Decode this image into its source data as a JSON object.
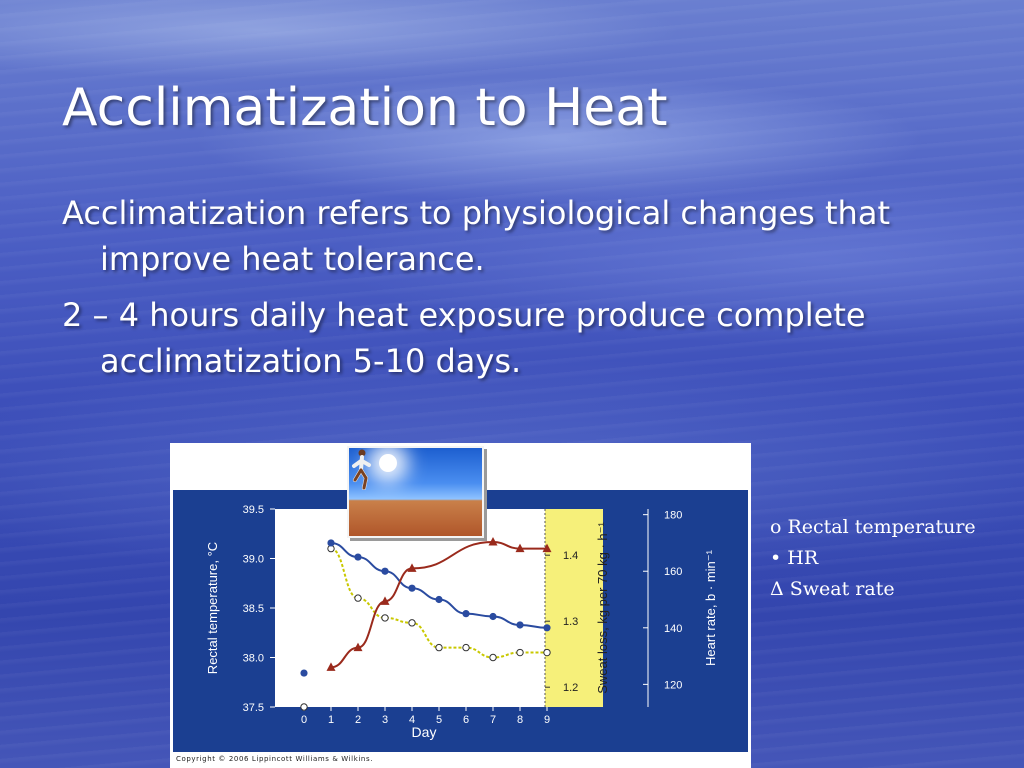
{
  "slide": {
    "title": "Acclimatization to Heat",
    "bullets": [
      "Acclimatization refers to physiological changes that improve heat tolerance.",
      "2 – 4 hours daily heat exposure produce complete acclimatization 5-10 days."
    ]
  },
  "legend": {
    "items": [
      "o Rectal temperature",
      "• HR",
      "Δ Sweat rate"
    ]
  },
  "figure": {
    "copyright": "Copyright © 2006 Lippincott Williams & Wilkins."
  },
  "colors": {
    "panel_blue": "#1b3f91",
    "plot_bg": "#ffffff",
    "sweat_band": "#f6f07a",
    "hr_series": "#2a4ba0",
    "sweat_series": "#9a2a1c",
    "rectal_series": "#c9c800"
  },
  "chart_data": {
    "type": "scatter",
    "xlabel": "Day",
    "x_ticks": [
      "0",
      "1",
      "2",
      "3",
      "4",
      "5",
      "6",
      "7",
      "8",
      "9"
    ],
    "xlim": [
      0,
      9
    ],
    "left_axis": {
      "label": "Rectal temperature, °C",
      "ylim": [
        37.5,
        39.5
      ],
      "ticks": [
        "39.5",
        "39.0",
        "38.5",
        "38.0",
        "37.5"
      ]
    },
    "inner_axis": {
      "label": "Sweat loss, kg per 70 kg · h⁻¹",
      "ticks": [
        "1.4",
        "1.3",
        "1.2"
      ],
      "ylim": [
        1.17,
        1.47
      ]
    },
    "right_axis": {
      "label": "Heart rate, b · min⁻¹",
      "ticks": [
        "180",
        "160",
        "140",
        "120"
      ],
      "ylim": [
        112,
        182
      ]
    },
    "series": [
      {
        "axis": "left",
        "marker": "open-circle",
        "x": [
          0,
          1,
          2,
          3,
          4,
          5,
          6,
          7,
          8,
          9
        ],
        "y": [
          37.5,
          39.1,
          38.6,
          38.4,
          38.35,
          38.1,
          38.1,
          38.0,
          38.05,
          38.05
        ]
      },
      {
        "axis": "right",
        "marker": "filled-circle",
        "x": [
          0,
          1,
          2,
          3,
          4,
          5,
          6,
          7,
          8,
          9
        ],
        "y": [
          124,
          170,
          165,
          160,
          154,
          150,
          145,
          144,
          141,
          140
        ]
      },
      {
        "axis": "inner",
        "marker": "triangle",
        "x": [
          1,
          2,
          3,
          4,
          7,
          8,
          9
        ],
        "y": [
          1.23,
          1.26,
          1.33,
          1.38,
          1.42,
          1.41,
          1.41
        ]
      }
    ]
  }
}
